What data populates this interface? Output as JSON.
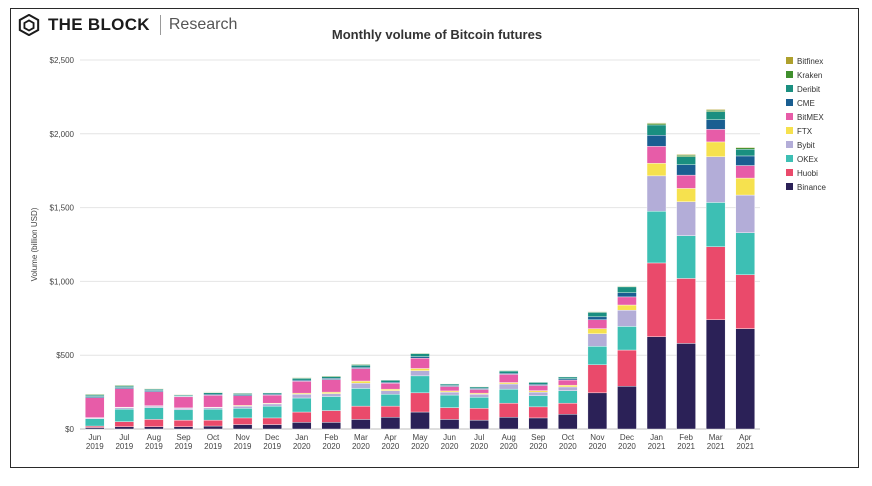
{
  "brand": {
    "name": "THE BLOCK",
    "sub": "Research"
  },
  "chart_data": {
    "type": "bar",
    "stacked": true,
    "title": "Monthly volume of Bitcoin futures",
    "xlabel": "",
    "ylabel": "Volume (billion USD)",
    "ylim": [
      0,
      2500
    ],
    "yticks": [
      "$0",
      "$500",
      "$1,000",
      "$1,500",
      "$2,000",
      "$2,500"
    ],
    "ytick_values": [
      0,
      500,
      1000,
      1500,
      2000,
      2500
    ],
    "grid": true,
    "legend_position": "right",
    "categories": [
      [
        "Jun",
        "2019"
      ],
      [
        "Jul",
        "2019"
      ],
      [
        "Aug",
        "2019"
      ],
      [
        "Sep",
        "2019"
      ],
      [
        "Oct",
        "2019"
      ],
      [
        "Nov",
        "2019"
      ],
      [
        "Dec",
        "2019"
      ],
      [
        "Jan",
        "2020"
      ],
      [
        "Feb",
        "2020"
      ],
      [
        "Mar",
        "2020"
      ],
      [
        "Apr",
        "2020"
      ],
      [
        "May",
        "2020"
      ],
      [
        "Jun",
        "2020"
      ],
      [
        "Jul",
        "2020"
      ],
      [
        "Aug",
        "2020"
      ],
      [
        "Sep",
        "2020"
      ],
      [
        "Oct",
        "2020"
      ],
      [
        "Nov",
        "2020"
      ],
      [
        "Dec",
        "2020"
      ],
      [
        "Jan",
        "2021"
      ],
      [
        "Feb",
        "2021"
      ],
      [
        "Mar",
        "2021"
      ],
      [
        "Apr",
        "2021"
      ]
    ],
    "series": [
      {
        "name": "Binance",
        "color": "#2b2157",
        "values": [
          10,
          15,
          15,
          15,
          20,
          30,
          30,
          45,
          45,
          65,
          80,
          115,
          65,
          60,
          80,
          75,
          100,
          245,
          290,
          625,
          580,
          740,
          680
        ]
      },
      {
        "name": "Huobi",
        "color": "#ea4a6b",
        "values": [
          10,
          35,
          50,
          45,
          40,
          45,
          45,
          70,
          80,
          90,
          75,
          130,
          80,
          80,
          95,
          75,
          75,
          190,
          245,
          500,
          440,
          495,
          365
        ]
      },
      {
        "name": "OKEx",
        "color": "#3dbfb4",
        "values": [
          50,
          85,
          80,
          70,
          75,
          65,
          80,
          95,
          95,
          120,
          80,
          115,
          85,
          75,
          95,
          75,
          85,
          125,
          160,
          350,
          290,
          300,
          285
        ]
      },
      {
        "name": "Bybit",
        "color": "#b3add8",
        "values": [
          5,
          10,
          10,
          10,
          10,
          15,
          15,
          25,
          20,
          35,
          25,
          35,
          20,
          20,
          35,
          25,
          25,
          85,
          110,
          240,
          230,
          310,
          255
        ]
      },
      {
        "name": "FTX",
        "color": "#f6e14e",
        "values": [
          2,
          3,
          3,
          3,
          3,
          5,
          5,
          8,
          10,
          15,
          10,
          15,
          8,
          8,
          10,
          10,
          12,
          35,
          35,
          85,
          90,
          100,
          115
        ]
      },
      {
        "name": "BitMEX",
        "color": "#e75ca8",
        "values": [
          135,
          125,
          95,
          75,
          80,
          65,
          55,
          80,
          85,
          85,
          40,
          70,
          30,
          25,
          55,
          35,
          35,
          60,
          55,
          115,
          90,
          85,
          85
        ]
      },
      {
        "name": "CME",
        "color": "#1a5e91",
        "values": [
          8,
          8,
          8,
          5,
          8,
          8,
          7,
          8,
          8,
          8,
          7,
          10,
          7,
          7,
          8,
          8,
          8,
          20,
          28,
          75,
          70,
          65,
          65
        ]
      },
      {
        "name": "Deribit",
        "color": "#1a8f80",
        "values": [
          10,
          10,
          8,
          7,
          10,
          8,
          8,
          12,
          12,
          15,
          13,
          20,
          10,
          10,
          15,
          13,
          13,
          30,
          40,
          70,
          55,
          55,
          45
        ]
      },
      {
        "name": "Kraken",
        "color": "#3f8f2d",
        "values": [
          5,
          5,
          4,
          3,
          4,
          4,
          3,
          5,
          5,
          5,
          3,
          5,
          2,
          2,
          4,
          3,
          3,
          5,
          5,
          10,
          10,
          10,
          10
        ]
      },
      {
        "name": "Bitfinex",
        "color": "#aea02d",
        "values": [
          2,
          2,
          2,
          2,
          2,
          2,
          2,
          2,
          2,
          2,
          2,
          2,
          1,
          1,
          2,
          2,
          2,
          3,
          3,
          5,
          5,
          5,
          5
        ]
      }
    ]
  }
}
